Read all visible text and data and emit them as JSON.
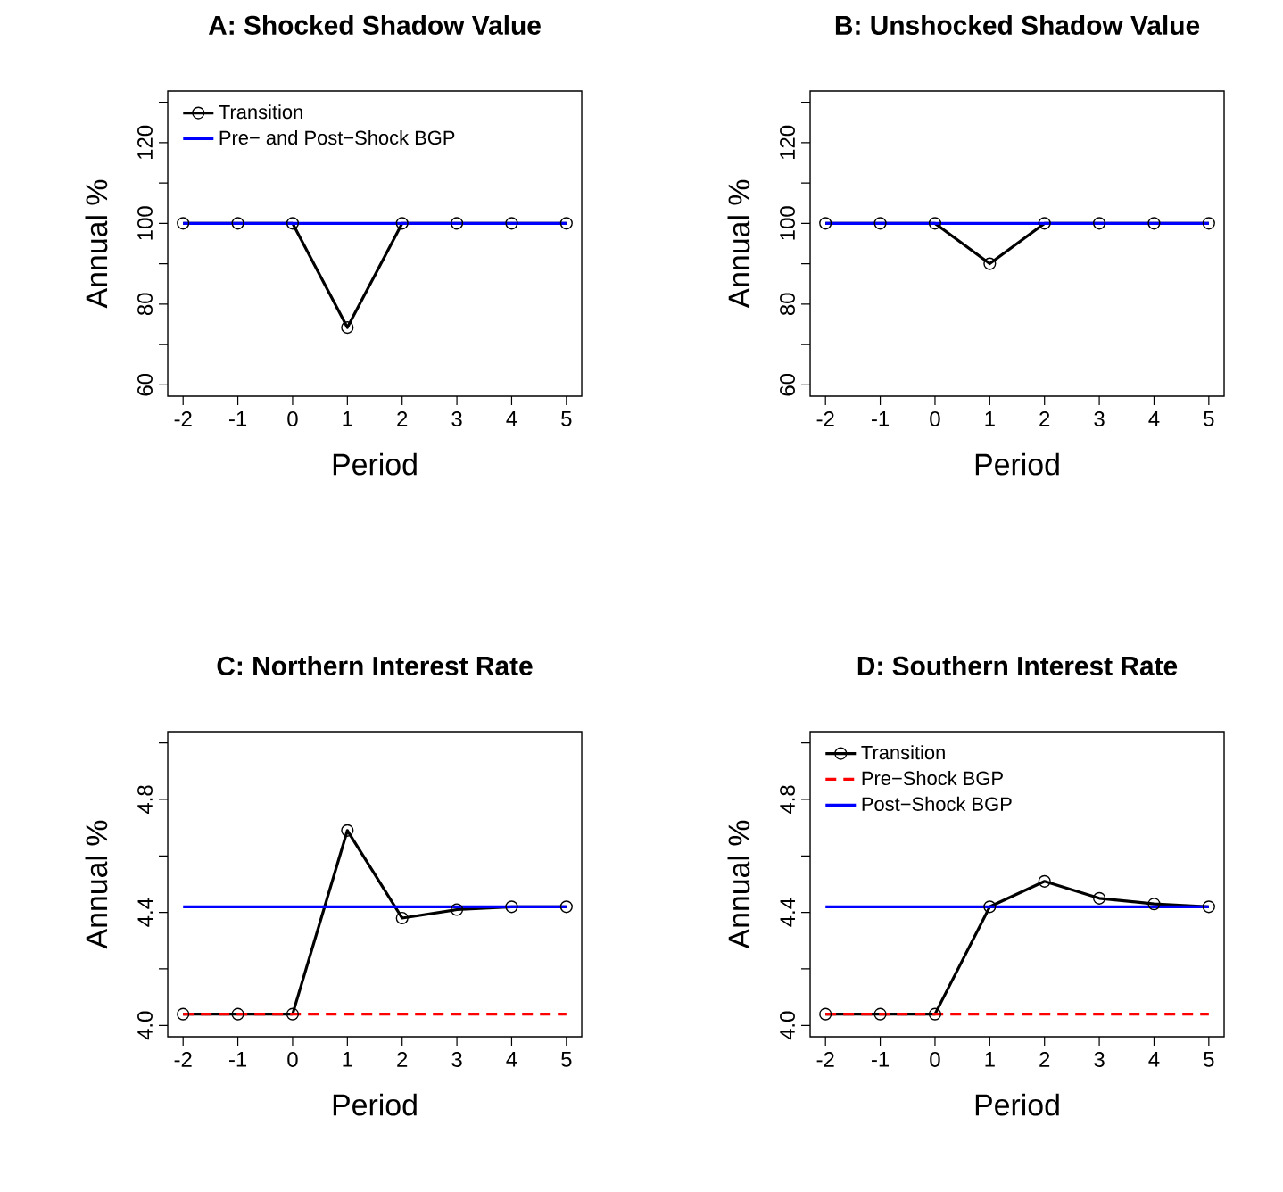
{
  "chart_data": [
    {
      "type": "line",
      "title": "A: Shocked Shadow Value",
      "xlabel": "Period",
      "ylabel": "Annual %",
      "xlim": [
        -2.28,
        5.28
      ],
      "ylim": [
        57.2,
        132.8
      ],
      "xticks": [
        -2,
        -1,
        0,
        1,
        2,
        3,
        4,
        5
      ],
      "yticks": [
        60,
        {
          "value": 70,
          "label": null
        },
        80,
        {
          "value": 90,
          "label": null
        },
        100,
        {
          "value": 110,
          "label": null
        },
        120,
        {
          "value": 130,
          "label": null
        }
      ],
      "legend": "top left",
      "series": [
        {
          "name": "Transition",
          "color": "#000000",
          "marker": "circle",
          "line_style": "solid",
          "x": [
            -2,
            -1,
            0,
            1,
            2,
            3,
            4,
            5
          ],
          "values": [
            100,
            100,
            100,
            74.2,
            100,
            100,
            100,
            100
          ]
        },
        {
          "name": "Pre− and Post−Shock BGP",
          "color": "#0000ff",
          "marker": "none",
          "line_style": "solid",
          "x": [
            -2,
            5
          ],
          "values": [
            100,
            100
          ]
        }
      ]
    },
    {
      "type": "line",
      "title": "B: Unshocked Shadow Value",
      "xlabel": "Period",
      "ylabel": "Annual %",
      "xlim": [
        -2.28,
        5.28
      ],
      "ylim": [
        57.2,
        132.8
      ],
      "xticks": [
        -2,
        -1,
        0,
        1,
        2,
        3,
        4,
        5
      ],
      "yticks": [
        60,
        {
          "value": 70,
          "label": null
        },
        80,
        {
          "value": 90,
          "label": null
        },
        100,
        {
          "value": 110,
          "label": null
        },
        120,
        {
          "value": 130,
          "label": null
        }
      ],
      "series": [
        {
          "color": "#000000",
          "marker": "circle",
          "line_style": "solid",
          "x": [
            -2,
            -1,
            0,
            1,
            2,
            3,
            4,
            5
          ],
          "values": [
            100,
            100,
            100,
            90,
            100,
            100,
            100,
            100
          ]
        },
        {
          "color": "#0000ff",
          "marker": "none",
          "line_style": "solid",
          "x": [
            -2,
            5
          ],
          "values": [
            100,
            100
          ]
        }
      ]
    },
    {
      "type": "line",
      "title": "C: Northern Interest Rate",
      "xlabel": "Period",
      "ylabel": "Annual %",
      "xlim": [
        -2.28,
        5.28
      ],
      "ylim": [
        3.96,
        5.04
      ],
      "xticks": [
        -2,
        -1,
        0,
        1,
        2,
        3,
        4,
        5
      ],
      "yticks": [
        {
          "value": 4.0,
          "label": "4.0"
        },
        {
          "value": 4.2,
          "label": null
        },
        4.4,
        {
          "value": 4.6,
          "label": null
        },
        4.8,
        {
          "value": 5.0,
          "label": null
        }
      ],
      "series": [
        {
          "color": "#000000",
          "marker": "circle",
          "line_style": "solid",
          "x": [
            -2,
            -1,
            0,
            1,
            2,
            3,
            4,
            5
          ],
          "values": [
            4.04,
            4.04,
            4.04,
            4.69,
            4.38,
            4.41,
            4.42,
            4.42
          ]
        },
        {
          "color": "#ff0000",
          "marker": "none",
          "line_style": "dashed",
          "x": [
            -2,
            5
          ],
          "values": [
            4.04,
            4.04
          ]
        },
        {
          "color": "#0000ff",
          "marker": "none",
          "line_style": "solid",
          "x": [
            -2,
            5
          ],
          "values": [
            4.42,
            4.42
          ]
        }
      ]
    },
    {
      "type": "line",
      "title": "D: Southern Interest Rate",
      "xlabel": "Period",
      "ylabel": "Annual %",
      "xlim": [
        -2.28,
        5.28
      ],
      "ylim": [
        3.96,
        5.04
      ],
      "xticks": [
        -2,
        -1,
        0,
        1,
        2,
        3,
        4,
        5
      ],
      "yticks": [
        {
          "value": 4.0,
          "label": "4.0"
        },
        {
          "value": 4.2,
          "label": null
        },
        4.4,
        {
          "value": 4.6,
          "label": null
        },
        4.8,
        {
          "value": 5.0,
          "label": null
        }
      ],
      "legend": "top left",
      "series": [
        {
          "name": "Transition",
          "color": "#000000",
          "marker": "circle",
          "line_style": "solid",
          "x": [
            -2,
            -1,
            0,
            1,
            2,
            3,
            4,
            5
          ],
          "values": [
            4.04,
            4.04,
            4.04,
            4.42,
            4.51,
            4.45,
            4.43,
            4.42
          ]
        },
        {
          "name": "Pre−Shock BGP",
          "color": "#ff0000",
          "marker": "none",
          "line_style": "dashed",
          "x": [
            -2,
            5
          ],
          "values": [
            4.04,
            4.04
          ]
        },
        {
          "name": "Post−Shock BGP",
          "color": "#0000ff",
          "marker": "none",
          "line_style": "solid",
          "x": [
            -2,
            5
          ],
          "values": [
            4.42,
            4.42
          ]
        }
      ]
    }
  ]
}
